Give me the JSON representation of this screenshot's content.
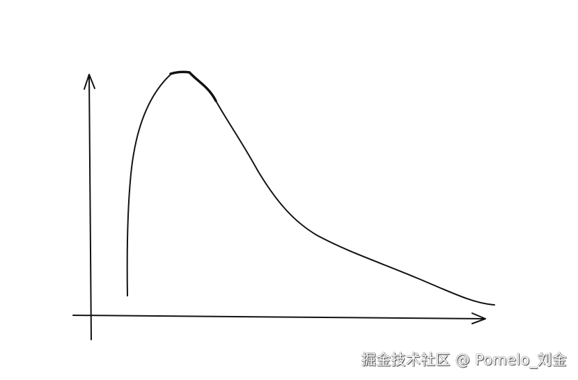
{
  "diagram": {
    "stroke_color": "#111111",
    "background": "#ffffff"
  },
  "watermark": {
    "text": "掘金技术社区 @ Pomelo_刘金"
  }
}
